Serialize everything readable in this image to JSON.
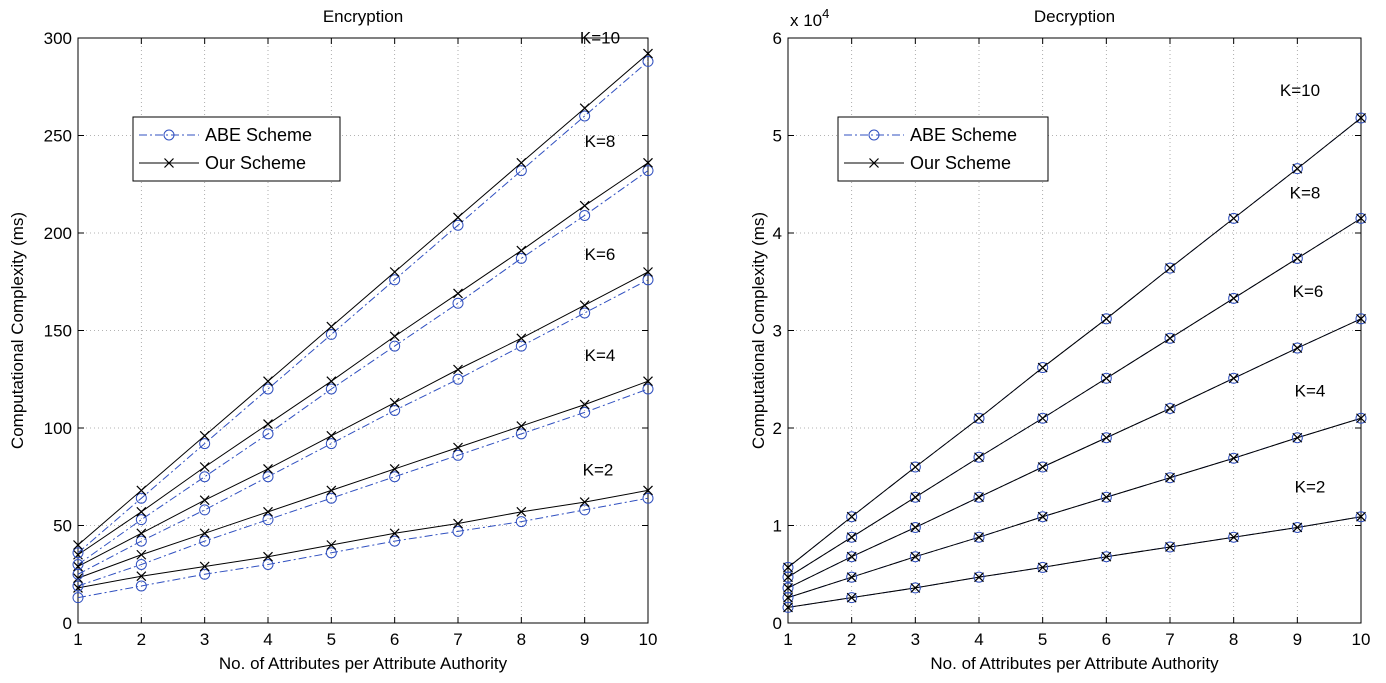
{
  "chart_data": [
    {
      "type": "line",
      "title": "Encryption",
      "xlabel": "No. of Attributes per Attribute Authority",
      "ylabel": "Computational Complexity (ms)",
      "x": [
        1,
        2,
        3,
        4,
        5,
        6,
        7,
        8,
        9,
        10
      ],
      "xlim": [
        1,
        10
      ],
      "ylim": [
        0,
        300
      ],
      "xticks": [
        1,
        2,
        3,
        4,
        5,
        6,
        7,
        8,
        9,
        10
      ],
      "yticks": [
        0,
        50,
        100,
        150,
        200,
        250,
        300
      ],
      "grid": true,
      "exponent_label": "",
      "legend": {
        "placement": "upper-left",
        "entries": [
          {
            "label": "ABE Scheme",
            "style": "dash-dot",
            "marker": "circle",
            "color": "#3050c0"
          },
          {
            "label": "Our Scheme",
            "style": "solid",
            "marker": "x",
            "color": "#000000"
          }
        ]
      },
      "groups": [
        {
          "label": "K=2",
          "abe": [
            13,
            19,
            25,
            30,
            36,
            42,
            47,
            52,
            58,
            64
          ],
          "ours": [
            18,
            24,
            29,
            34,
            40,
            46,
            51,
            57,
            62,
            68
          ]
        },
        {
          "label": "K=4",
          "abe": [
            19,
            30,
            42,
            53,
            64,
            75,
            86,
            97,
            108,
            120
          ],
          "ours": [
            23,
            35,
            46,
            57,
            68,
            79,
            90,
            101,
            112,
            124
          ]
        },
        {
          "label": "K=6",
          "abe": [
            25,
            42,
            58,
            75,
            92,
            109,
            125,
            142,
            159,
            176
          ],
          "ours": [
            29,
            46,
            63,
            79,
            96,
            113,
            130,
            146,
            163,
            180
          ]
        },
        {
          "label": "K=8",
          "abe": [
            30,
            53,
            75,
            97,
            120,
            142,
            164,
            187,
            209,
            232
          ],
          "ours": [
            35,
            57,
            80,
            102,
            124,
            147,
            169,
            191,
            214,
            236
          ]
        },
        {
          "label": "K=10",
          "abe": [
            36,
            64,
            92,
            120,
            148,
            176,
            204,
            232,
            260,
            288
          ],
          "ours": [
            40,
            68,
            96,
            124,
            152,
            180,
            208,
            236,
            264,
            292
          ]
        }
      ]
    },
    {
      "type": "line",
      "title": "Decryption",
      "xlabel": "No. of Attributes per Attribute Authority",
      "ylabel": "Computational Complexity (ms)",
      "x": [
        1,
        2,
        3,
        4,
        5,
        6,
        7,
        8,
        9,
        10
      ],
      "xlim": [
        1,
        10
      ],
      "ylim": [
        0,
        60000
      ],
      "xticks": [
        1,
        2,
        3,
        4,
        5,
        6,
        7,
        8,
        9,
        10
      ],
      "yticks": [
        0,
        1,
        2,
        3,
        4,
        5,
        6
      ],
      "y_scale_factor": 10000,
      "grid": true,
      "exponent_label": "x 10",
      "exponent_power": "4",
      "legend": {
        "placement": "upper-left",
        "entries": [
          {
            "label": "ABE Scheme",
            "style": "dash-dot",
            "marker": "circle",
            "color": "#3050c0"
          },
          {
            "label": "Our Scheme",
            "style": "solid",
            "marker": "x",
            "color": "#000000"
          }
        ]
      },
      "groups": [
        {
          "label": "K=2",
          "abe": [
            1600,
            2600,
            3600,
            4700,
            5700,
            6800,
            7800,
            8800,
            9800,
            10900
          ],
          "ours": [
            1600,
            2600,
            3600,
            4700,
            5700,
            6800,
            7800,
            8800,
            9800,
            10900
          ]
        },
        {
          "label": "K=4",
          "abe": [
            2600,
            4700,
            6800,
            8800,
            10900,
            12900,
            14900,
            16900,
            19000,
            21000
          ],
          "ours": [
            2600,
            4700,
            6800,
            8800,
            10900,
            12900,
            14900,
            16900,
            19000,
            21000
          ]
        },
        {
          "label": "K=6",
          "abe": [
            3600,
            6800,
            9800,
            12900,
            16000,
            19000,
            22000,
            25100,
            28200,
            31200
          ],
          "ours": [
            3600,
            6800,
            9800,
            12900,
            16000,
            19000,
            22000,
            25100,
            28200,
            31200
          ]
        },
        {
          "label": "K=8",
          "abe": [
            4700,
            8800,
            12900,
            17000,
            21000,
            25100,
            29200,
            33300,
            37400,
            41500
          ],
          "ours": [
            4700,
            8800,
            12900,
            17000,
            21000,
            25100,
            29200,
            33300,
            37400,
            41500
          ]
        },
        {
          "label": "K=10",
          "abe": [
            5700,
            10900,
            16000,
            21000,
            26200,
            31200,
            36400,
            41500,
            46600,
            51800
          ],
          "ours": [
            5700,
            10900,
            16000,
            21000,
            26200,
            31200,
            36400,
            41500,
            46600,
            51800
          ]
        }
      ]
    }
  ]
}
